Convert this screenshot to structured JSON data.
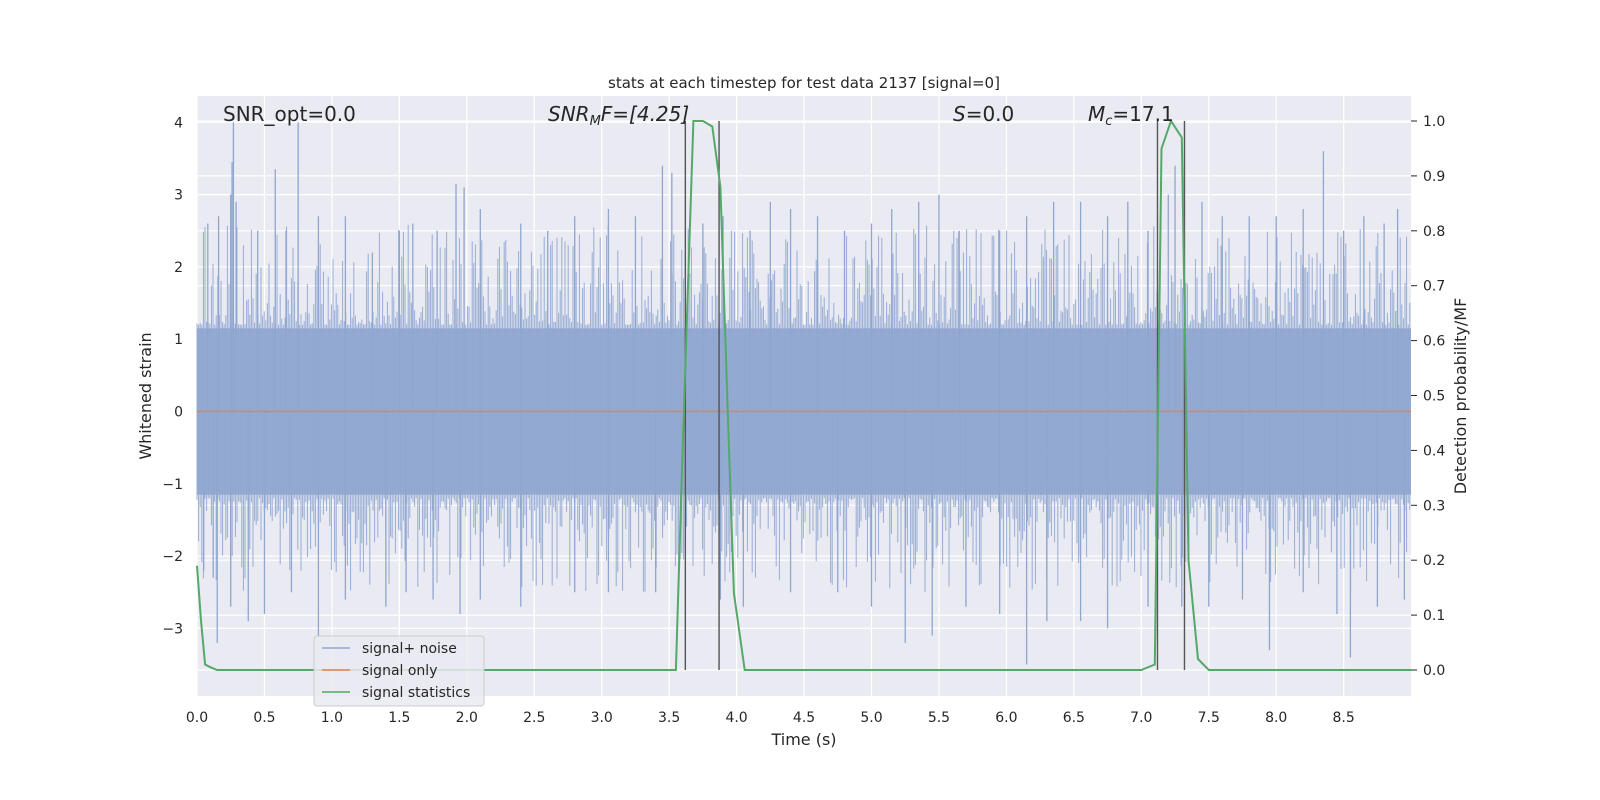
{
  "chart_data": {
    "type": "line",
    "title": "stats at each timestep for test data 2137 [signal=0]",
    "xlabel": "Time (s)",
    "ylabel_left": "Whitened strain",
    "ylabel_right": "Detection probability/MF",
    "xlim": [
      0,
      9
    ],
    "ylim_left": [
      -3.9,
      4.35
    ],
    "ylim_right": [
      -0.047,
      1.047
    ],
    "grid": true,
    "x_ticks": [
      "0.0",
      "0.5",
      "1.0",
      "1.5",
      "2.0",
      "2.5",
      "3.0",
      "3.5",
      "4.0",
      "4.5",
      "5.0",
      "5.5",
      "6.0",
      "6.5",
      "7.0",
      "7.5",
      "8.0",
      "8.5"
    ],
    "y_ticks_left": [
      "4",
      "3",
      "2",
      "1",
      "0",
      "−1",
      "−2",
      "−3"
    ],
    "y_ticks_right": [
      "1.0",
      "0.9",
      "0.8",
      "0.7",
      "0.6",
      "0.5",
      "0.4",
      "0.3",
      "0.2",
      "0.1",
      "0.0"
    ],
    "annotations": {
      "snr_opt": "SNR_opt=0.0",
      "snr_mf_main": "SNR",
      "snr_mf_sub": "M",
      "snr_mf_tail": "F=[4.25]",
      "s_var": "S",
      "s_val": "=0.0",
      "mc_var": "M",
      "mc_sub": "c",
      "mc_val": "=17.1"
    },
    "legend": {
      "placement": "lower-left",
      "items": [
        {
          "label": "signal+ noise",
          "color": "#8fa6cf"
        },
        {
          "label": "signal only",
          "color": "#dd8452"
        },
        {
          "label": "signal statistics",
          "color": "#55a868"
        }
      ]
    },
    "series": [
      {
        "name": "signal+ noise",
        "axis": "left",
        "color": "#8fa6cf",
        "fill_band": [
          -1.15,
          1.15
        ],
        "peaks_up": [
          [
            0.08,
            2.6
          ],
          [
            0.16,
            2.7
          ],
          [
            0.25,
            3.0
          ],
          [
            0.26,
            3.45
          ],
          [
            0.27,
            4.0
          ],
          [
            0.29,
            2.9
          ],
          [
            0.45,
            2.5
          ],
          [
            0.58,
            3.35
          ],
          [
            0.66,
            2.5
          ],
          [
            0.75,
            4.0
          ],
          [
            0.9,
            2.7
          ],
          [
            1.1,
            2.7
          ],
          [
            1.3,
            2.2
          ],
          [
            1.5,
            2.5
          ],
          [
            1.6,
            2.6
          ],
          [
            1.78,
            2.5
          ],
          [
            1.92,
            3.15
          ],
          [
            1.98,
            3.1
          ],
          [
            2.1,
            2.8
          ],
          [
            2.4,
            2.6
          ],
          [
            2.6,
            2.5
          ],
          [
            2.8,
            2.7
          ],
          [
            3.05,
            2.8
          ],
          [
            3.25,
            2.7
          ],
          [
            3.45,
            3.4
          ],
          [
            3.52,
            3.3
          ],
          [
            3.62,
            2.2
          ],
          [
            3.75,
            2.6
          ],
          [
            3.9,
            2.7
          ],
          [
            4.1,
            2.5
          ],
          [
            4.25,
            2.9
          ],
          [
            4.4,
            2.8
          ],
          [
            4.6,
            2.7
          ],
          [
            4.8,
            2.5
          ],
          [
            5.0,
            2.6
          ],
          [
            5.15,
            2.8
          ],
          [
            5.35,
            2.9
          ],
          [
            5.5,
            3.0
          ],
          [
            5.65,
            2.5
          ],
          [
            5.95,
            2.5
          ],
          [
            6.15,
            2.7
          ],
          [
            6.35,
            2.9
          ],
          [
            6.55,
            2.9
          ],
          [
            6.75,
            2.7
          ],
          [
            6.9,
            2.9
          ],
          [
            7.05,
            2.5
          ],
          [
            7.2,
            3.0
          ],
          [
            7.25,
            3.4
          ],
          [
            7.45,
            2.9
          ],
          [
            7.6,
            2.7
          ],
          [
            7.8,
            2.7
          ],
          [
            8.0,
            2.7
          ],
          [
            8.2,
            2.8
          ],
          [
            8.35,
            3.6
          ],
          [
            8.5,
            2.5
          ],
          [
            8.65,
            2.7
          ],
          [
            8.8,
            2.6
          ],
          [
            8.9,
            2.8
          ]
        ],
        "peaks_down": [
          [
            0.05,
            -2.2
          ],
          [
            0.12,
            -2.3
          ],
          [
            0.15,
            -3.2
          ],
          [
            0.25,
            -2.7
          ],
          [
            0.38,
            -2.9
          ],
          [
            0.5,
            -2.8
          ],
          [
            0.7,
            -2.5
          ],
          [
            0.9,
            -3.1
          ],
          [
            1.1,
            -2.6
          ],
          [
            1.4,
            -2.7
          ],
          [
            1.55,
            -2.5
          ],
          [
            1.75,
            -2.6
          ],
          [
            1.95,
            -2.8
          ],
          [
            2.1,
            -2.6
          ],
          [
            2.4,
            -2.7
          ],
          [
            2.8,
            -2.5
          ],
          [
            3.05,
            -2.5
          ],
          [
            3.4,
            -2.5
          ],
          [
            3.88,
            -2.6
          ],
          [
            4.05,
            -2.7
          ],
          [
            4.4,
            -2.5
          ],
          [
            4.75,
            -2.5
          ],
          [
            5.0,
            -2.7
          ],
          [
            5.25,
            -3.2
          ],
          [
            5.45,
            -3.1
          ],
          [
            5.7,
            -2.7
          ],
          [
            5.95,
            -2.8
          ],
          [
            6.15,
            -3.5
          ],
          [
            6.3,
            -2.9
          ],
          [
            6.55,
            -2.9
          ],
          [
            6.75,
            -3.0
          ],
          [
            7.05,
            -2.7
          ],
          [
            7.3,
            -2.7
          ],
          [
            7.5,
            -2.7
          ],
          [
            7.75,
            -2.6
          ],
          [
            7.95,
            -3.3
          ],
          [
            8.2,
            -2.5
          ],
          [
            8.45,
            -2.8
          ],
          [
            8.55,
            -3.4
          ],
          [
            8.75,
            -2.7
          ],
          [
            8.95,
            -2.6
          ]
        ]
      },
      {
        "name": "signal only",
        "axis": "left",
        "color": "#dd8452",
        "x": [
          0,
          9
        ],
        "y": [
          0,
          0
        ]
      },
      {
        "name": "signal statistics",
        "axis": "right",
        "color": "#55a868",
        "x": [
          0.0,
          0.03,
          0.06,
          0.1,
          0.15,
          0.3,
          1.0,
          2.0,
          3.0,
          3.55,
          3.6,
          3.68,
          3.75,
          3.82,
          3.88,
          3.93,
          3.98,
          4.06,
          4.2,
          5.0,
          6.0,
          7.0,
          7.1,
          7.15,
          7.22,
          7.3,
          7.35,
          7.42,
          7.5,
          8.0,
          9.0
        ],
        "y": [
          0.19,
          0.09,
          0.01,
          0.005,
          0.0,
          0.0,
          0.0,
          0.0,
          0.0,
          0.0,
          0.4,
          1.0,
          1.0,
          0.99,
          0.88,
          0.5,
          0.14,
          0.0,
          0.0,
          0.0,
          0.0,
          0.0,
          0.01,
          0.95,
          1.0,
          0.97,
          0.2,
          0.02,
          0.0,
          0.0,
          0.0
        ]
      }
    ],
    "vlines": [
      3.62,
      3.87,
      7.12,
      7.32
    ]
  }
}
